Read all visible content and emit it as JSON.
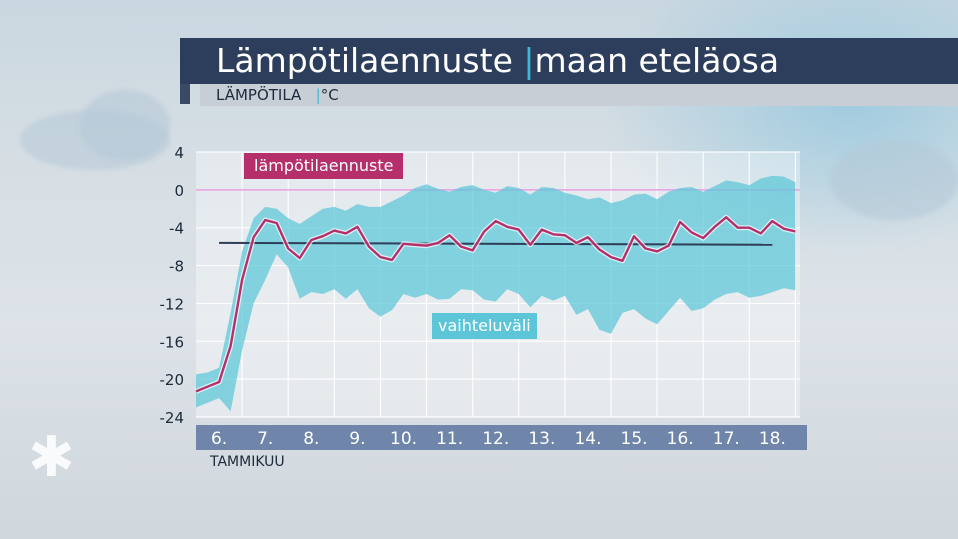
{
  "title": "Lämpötilaennuste",
  "title_separator": "|",
  "title_region": "maan eteläosa",
  "subtitle_quantity": "LÄMPÖTILA",
  "subtitle_separator": "|",
  "subtitle_unit": "°C",
  "month_label": "TAMMIKUU",
  "snow_icon": "snowflake-asterisk",
  "colors": {
    "title_bar": "#2c3e5c",
    "forecast_line": "#b5306a",
    "range_band": "#5cc6d8",
    "mean_line": "#2e3d58",
    "zero_line": "#e8a0e0",
    "x_axis_bar": "#6f86aa"
  },
  "chart_data": {
    "type": "line",
    "ylim": [
      -24,
      4
    ],
    "yticks": [
      4,
      0,
      -4,
      -8,
      -12,
      -16,
      -20,
      -24
    ],
    "ytick_labels": [
      "4",
      "0",
      "-4",
      "-8",
      "-12",
      "-16",
      "-20",
      "-24"
    ],
    "x_range": [
      6,
      18.6
    ],
    "day_ticks": [
      6,
      7,
      8,
      9,
      10,
      11,
      12,
      13,
      14,
      15,
      16,
      17,
      18
    ],
    "day_labels": [
      "6.",
      "7.",
      "8.",
      "9.",
      "10.",
      "11.",
      "12.",
      "13.",
      "14.",
      "15.",
      "16.",
      "17.",
      "18."
    ],
    "grid": true,
    "series": [
      {
        "name": "lämpötilaennuste",
        "x": [
          5.5,
          5.75,
          6.0,
          6.25,
          6.5,
          6.75,
          7.0,
          7.25,
          7.5,
          7.75,
          8.0,
          8.25,
          8.5,
          8.75,
          9.0,
          9.25,
          9.5,
          9.75,
          10.0,
          10.25,
          10.5,
          10.75,
          11.0,
          11.25,
          11.5,
          11.75,
          12.0,
          12.25,
          12.5,
          12.75,
          13.0,
          13.25,
          13.5,
          13.75,
          14.0,
          14.25,
          14.5,
          14.75,
          15.0,
          15.25,
          15.5,
          15.75,
          16.0,
          16.25,
          16.5,
          16.75,
          17.0,
          17.25,
          17.5,
          17.75,
          18.0,
          18.25,
          18.5
        ],
        "y": [
          -21.3,
          -20.8,
          -20.3,
          -16.5,
          -9.5,
          -5.0,
          -3.2,
          -3.5,
          -6.2,
          -7.2,
          -5.3,
          -4.9,
          -4.3,
          -4.6,
          -3.9,
          -6.0,
          -7.1,
          -7.4,
          -5.7,
          -5.8,
          -5.9,
          -5.6,
          -4.8,
          -6.0,
          -6.4,
          -4.4,
          -3.3,
          -3.9,
          -4.2,
          -5.8,
          -4.2,
          -4.7,
          -4.8,
          -5.6,
          -5.0,
          -6.3,
          -7.1,
          -7.5,
          -4.9,
          -6.2,
          -6.5,
          -5.9,
          -3.4,
          -4.5,
          -5.1,
          -3.9,
          -2.9,
          -4.0,
          -4.0,
          -4.6,
          -3.3,
          -4.1,
          -4.4
        ]
      },
      {
        "name": "vaihteluväli",
        "x": [
          5.5,
          5.75,
          6.0,
          6.25,
          6.5,
          6.75,
          7.0,
          7.25,
          7.5,
          7.75,
          8.0,
          8.25,
          8.5,
          8.75,
          9.0,
          9.25,
          9.5,
          9.75,
          10.0,
          10.25,
          10.5,
          10.75,
          11.0,
          11.25,
          11.5,
          11.75,
          12.0,
          12.25,
          12.5,
          12.75,
          13.0,
          13.25,
          13.5,
          13.75,
          14.0,
          14.25,
          14.5,
          14.75,
          15.0,
          15.25,
          15.5,
          15.75,
          16.0,
          16.25,
          16.5,
          16.75,
          17.0,
          17.25,
          17.5,
          17.75,
          18.0,
          18.25,
          18.5
        ],
        "upper": [
          -19.5,
          -19.3,
          -18.8,
          -13.0,
          -6.5,
          -3.0,
          -1.8,
          -2.0,
          -3.0,
          -3.6,
          -2.8,
          -2.0,
          -1.8,
          -2.2,
          -1.5,
          -1.8,
          -1.8,
          -1.2,
          -0.6,
          0.2,
          0.6,
          0.1,
          -0.2,
          0.3,
          0.5,
          0.0,
          -0.3,
          0.4,
          0.2,
          -0.5,
          0.3,
          0.2,
          -0.3,
          -0.6,
          -1.0,
          -0.8,
          -1.4,
          -1.1,
          -0.5,
          -0.4,
          -1.0,
          -0.2,
          0.2,
          0.3,
          -0.2,
          0.4,
          1.0,
          0.8,
          0.5,
          1.2,
          1.5,
          1.4,
          0.8
        ],
        "lower": [
          -23.0,
          -22.5,
          -22.0,
          -23.4,
          -17.0,
          -12.0,
          -9.5,
          -6.8,
          -8.2,
          -11.5,
          -10.8,
          -11.0,
          -10.5,
          -11.5,
          -10.5,
          -12.5,
          -13.4,
          -12.7,
          -11.0,
          -11.4,
          -11.0,
          -11.6,
          -11.5,
          -10.5,
          -10.6,
          -11.6,
          -11.8,
          -10.5,
          -11.0,
          -12.4,
          -11.2,
          -11.7,
          -11.2,
          -13.2,
          -12.6,
          -14.8,
          -15.2,
          -13.0,
          -12.6,
          -13.6,
          -14.2,
          -12.8,
          -11.4,
          -12.8,
          -12.5,
          -11.6,
          -11.0,
          -10.8,
          -11.4,
          -11.2,
          -10.8,
          -10.4,
          -10.6
        ]
      },
      {
        "x": [
          6.0,
          18.0
        ],
        "y": [
          -5.6,
          -5.8
        ]
      }
    ],
    "legend": [
      {
        "label": "lämpötilaennuste",
        "placement": "top-left"
      },
      {
        "label": "vaihteluväli",
        "placement": "bottom-center"
      }
    ]
  }
}
